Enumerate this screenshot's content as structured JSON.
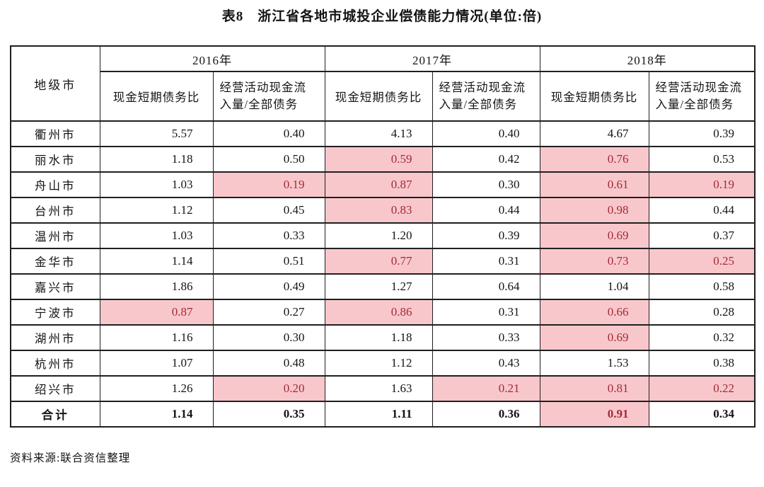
{
  "title": "表8　浙江省各地市城投企业偿债能力情况(单位:倍)",
  "source": "资料来源:联合资信整理",
  "colors": {
    "highlight_bg": "#f8c7cc",
    "highlight_text": "#a32a34",
    "border": "#1f1f1f"
  },
  "table": {
    "corner_header": "地级市",
    "year_groups": [
      "2016年",
      "2017年",
      "2018年"
    ],
    "sub_headers": [
      "现金短期债务比",
      "经营活动现金流入量/全部债务"
    ],
    "rows": [
      {
        "city": "衢州市",
        "values": [
          "5.57",
          "0.40",
          "4.13",
          "0.40",
          "4.67",
          "0.39"
        ],
        "highlight": [
          false,
          false,
          false,
          false,
          false,
          false
        ],
        "is_total": false
      },
      {
        "city": "丽水市",
        "values": [
          "1.18",
          "0.50",
          "0.59",
          "0.42",
          "0.76",
          "0.53"
        ],
        "highlight": [
          false,
          false,
          true,
          false,
          true,
          false
        ],
        "is_total": false
      },
      {
        "city": "舟山市",
        "values": [
          "1.03",
          "0.19",
          "0.87",
          "0.30",
          "0.61",
          "0.19"
        ],
        "highlight": [
          false,
          true,
          true,
          false,
          true,
          true
        ],
        "is_total": false
      },
      {
        "city": "台州市",
        "values": [
          "1.12",
          "0.45",
          "0.83",
          "0.44",
          "0.98",
          "0.44"
        ],
        "highlight": [
          false,
          false,
          true,
          false,
          true,
          false
        ],
        "is_total": false
      },
      {
        "city": "温州市",
        "values": [
          "1.03",
          "0.33",
          "1.20",
          "0.39",
          "0.69",
          "0.37"
        ],
        "highlight": [
          false,
          false,
          false,
          false,
          true,
          false
        ],
        "is_total": false
      },
      {
        "city": "金华市",
        "values": [
          "1.14",
          "0.51",
          "0.77",
          "0.31",
          "0.73",
          "0.25"
        ],
        "highlight": [
          false,
          false,
          true,
          false,
          true,
          true
        ],
        "is_total": false
      },
      {
        "city": "嘉兴市",
        "values": [
          "1.86",
          "0.49",
          "1.27",
          "0.64",
          "1.04",
          "0.58"
        ],
        "highlight": [
          false,
          false,
          false,
          false,
          false,
          false
        ],
        "is_total": false
      },
      {
        "city": "宁波市",
        "values": [
          "0.87",
          "0.27",
          "0.86",
          "0.31",
          "0.66",
          "0.28"
        ],
        "highlight": [
          true,
          false,
          true,
          false,
          true,
          false
        ],
        "is_total": false
      },
      {
        "city": "湖州市",
        "values": [
          "1.16",
          "0.30",
          "1.18",
          "0.33",
          "0.69",
          "0.32"
        ],
        "highlight": [
          false,
          false,
          false,
          false,
          true,
          false
        ],
        "is_total": false
      },
      {
        "city": "杭州市",
        "values": [
          "1.07",
          "0.48",
          "1.12",
          "0.43",
          "1.53",
          "0.38"
        ],
        "highlight": [
          false,
          false,
          false,
          false,
          false,
          false
        ],
        "is_total": false
      },
      {
        "city": "绍兴市",
        "values": [
          "1.26",
          "0.20",
          "1.63",
          "0.21",
          "0.81",
          "0.22"
        ],
        "highlight": [
          false,
          true,
          false,
          true,
          true,
          true
        ],
        "is_total": false
      },
      {
        "city": "合计",
        "values": [
          "1.14",
          "0.35",
          "1.11",
          "0.36",
          "0.91",
          "0.34"
        ],
        "highlight": [
          false,
          false,
          false,
          false,
          true,
          false
        ],
        "is_total": true
      }
    ]
  }
}
